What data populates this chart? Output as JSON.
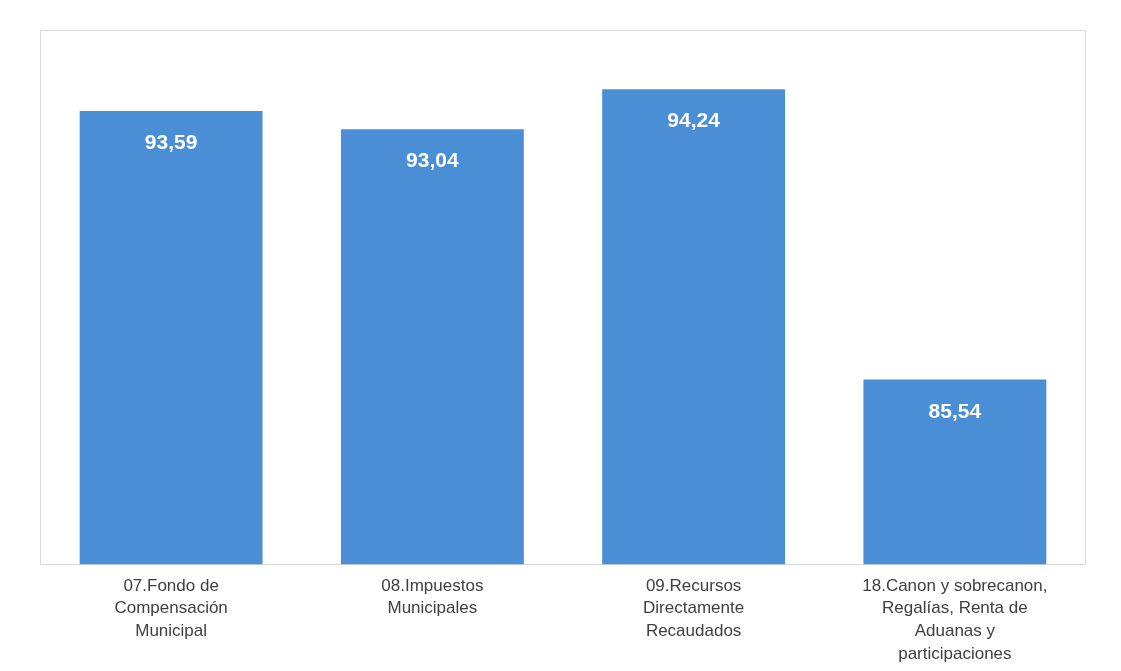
{
  "chart_data": {
    "type": "bar",
    "categories": [
      "07.Fondo de\nCompensación\nMunicipal",
      "08.Impuestos\nMunicipales",
      "09.Recursos\nDirectamente\nRecaudados",
      "18.Canon y sobrecanon,\nRegalías, Renta de\nAduanas y\nparticipaciones"
    ],
    "values": [
      93.59,
      93.04,
      94.24,
      85.54
    ],
    "value_labels": [
      "93,59",
      "93,04",
      "94,24",
      "85,54"
    ],
    "color": "#4a8fd6",
    "ylim": [
      80,
      96
    ],
    "tick_labels": "x",
    "grid": false
  }
}
